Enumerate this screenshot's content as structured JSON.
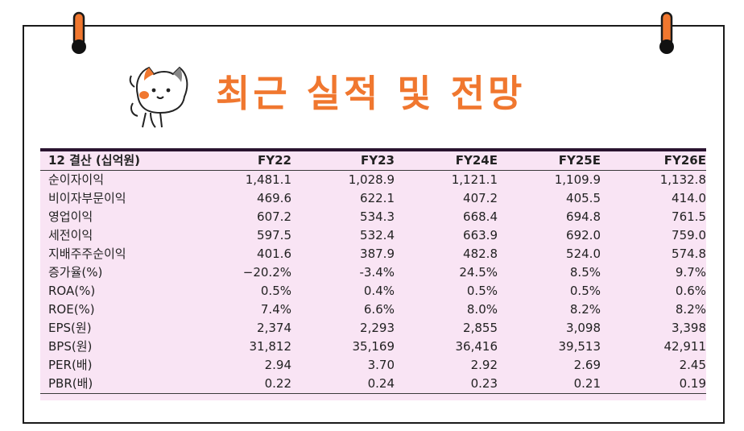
{
  "title": "최근 실적 및 전망",
  "colors": {
    "accent": "#f0772f",
    "table_bg": "#f9e4f4",
    "header_bar": "#2a1430",
    "border": "#1a1a1a"
  },
  "icons": {
    "pins": "binder-clip-icon",
    "mascot": "cat-mascot-icon"
  },
  "table": {
    "headers": [
      "12 결산 (십억원)",
      "FY22",
      "FY23",
      "FY24E",
      "FY25E",
      "FY26E"
    ],
    "rows": [
      [
        "순이자이익",
        "1,481.1",
        "1,028.9",
        "1,121.1",
        "1,109.9",
        "1,132.8"
      ],
      [
        "비이자부문이익",
        "469.6",
        "622.1",
        "407.2",
        "405.5",
        "414.0"
      ],
      [
        "영업이익",
        "607.2",
        "534.3",
        "668.4",
        "694.8",
        "761.5"
      ],
      [
        "세전이익",
        "597.5",
        "532.4",
        "663.9",
        "692.0",
        "759.0"
      ],
      [
        "지배주주순이익",
        "401.6",
        "387.9",
        "482.8",
        "524.0",
        "574.8"
      ],
      [
        "증가율(%)",
        "−20.2%",
        "-3.4%",
        "24.5%",
        "8.5%",
        "9.7%"
      ],
      [
        "ROA(%)",
        "0.5%",
        "0.4%",
        "0.5%",
        "0.5%",
        "0.6%"
      ],
      [
        "ROE(%)",
        "7.4%",
        "6.6%",
        "8.0%",
        "8.2%",
        "8.2%"
      ],
      [
        "EPS(원)",
        "2,374",
        "2,293",
        "2,855",
        "3,098",
        "3,398"
      ],
      [
        "BPS(원)",
        "31,812",
        "35,169",
        "36,416",
        "39,513",
        "42,911"
      ],
      [
        "PER(배)",
        "2.94",
        "3.70",
        "2.92",
        "2.69",
        "2.45"
      ],
      [
        "PBR(배)",
        "0.22",
        "0.24",
        "0.23",
        "0.21",
        "0.19"
      ]
    ]
  }
}
